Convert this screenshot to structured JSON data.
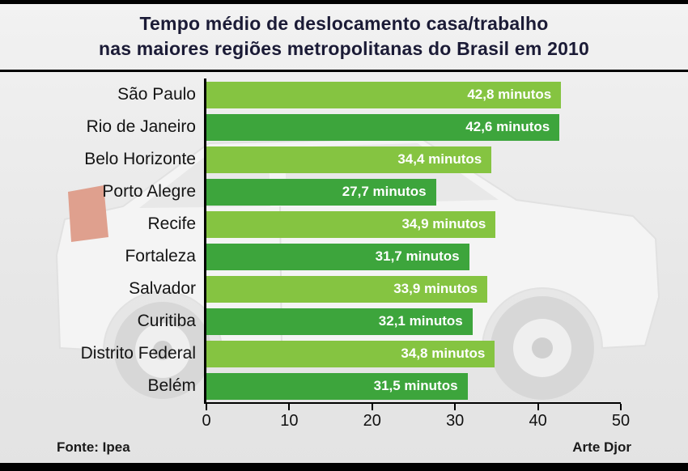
{
  "title": {
    "line1": "Tempo médio de deslocamento casa/trabalho",
    "line2": "nas maiores regiões metropolitanas do Brasil em 2010"
  },
  "chart_data": {
    "type": "bar",
    "orientation": "horizontal",
    "title": "Tempo médio de deslocamento casa/trabalho nas maiores regiões metropolitanas do Brasil em 2010",
    "unit": "minutos",
    "categories": [
      "São Paulo",
      "Rio de Janeiro",
      "Belo Horizonte",
      "Porto Alegre",
      "Recife",
      "Fortaleza",
      "Salvador",
      "Curitiba",
      "Distrito Federal",
      "Belém"
    ],
    "values": [
      42.8,
      42.6,
      34.4,
      27.7,
      34.9,
      31.7,
      33.9,
      32.1,
      34.8,
      31.5
    ],
    "value_labels": [
      "42,8 minutos",
      "42,6 minutos",
      "34,4 minutos",
      "27,7 minutos",
      "34,9 minutos",
      "31,7 minutos",
      "33,9 minutos",
      "32,1 minutos",
      "34,8 minutos",
      "31,5 minutos"
    ],
    "xlim": [
      0,
      50
    ],
    "x_ticks": [
      "0",
      "10",
      "20",
      "30",
      "40",
      "50"
    ],
    "bar_color_odd": "#85c441",
    "bar_color_even": "#3da53c",
    "value_label_color": "#ffffff",
    "grid": false,
    "legend_position": "none"
  },
  "footer": {
    "source": "Fonte: Ipea",
    "credit": "Arte Djor"
  },
  "watermark": {
    "subject": "car-silhouette",
    "accent_color": "#dfa08e"
  }
}
